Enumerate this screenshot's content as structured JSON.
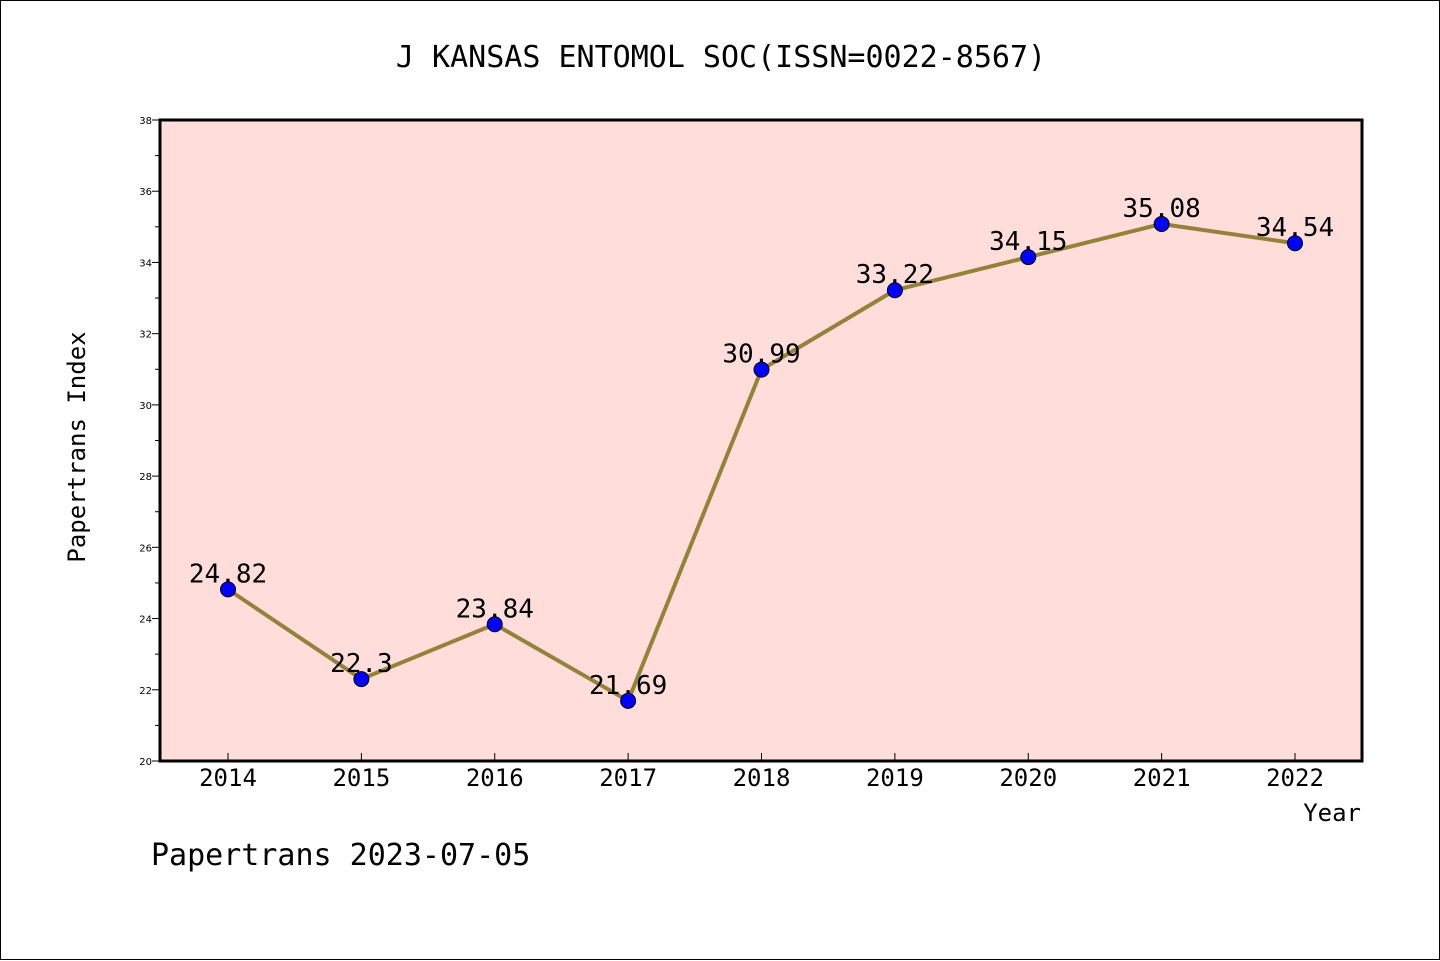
{
  "chart_data": {
    "type": "line",
    "title": "J KANSAS ENTOMOL SOC(ISSN=0022-8567)",
    "xlabel": "Year",
    "ylabel": "Papertrans Index",
    "categories": [
      "2014",
      "2015",
      "2016",
      "2017",
      "2018",
      "2019",
      "2020",
      "2021",
      "2022"
    ],
    "values": [
      24.82,
      22.3,
      23.84,
      21.69,
      30.99,
      33.22,
      34.15,
      35.08,
      34.54
    ],
    "data_labels": [
      "24.82",
      "22.3",
      "23.84",
      "21.69",
      "30.99",
      "33.22",
      "34.15",
      "35.08",
      "34.54"
    ],
    "ylim": [
      20,
      38
    ],
    "yticks": [
      "20",
      "22",
      "24",
      "26",
      "28",
      "30",
      "32",
      "34",
      "36",
      "38"
    ],
    "grid": false,
    "legend": "none"
  },
  "footer": "Papertrans 2023-07-05",
  "colors": {
    "plot_background": "#FFDDDA",
    "line": "#94823B",
    "marker": "#0000FF",
    "axis": "#000000"
  }
}
